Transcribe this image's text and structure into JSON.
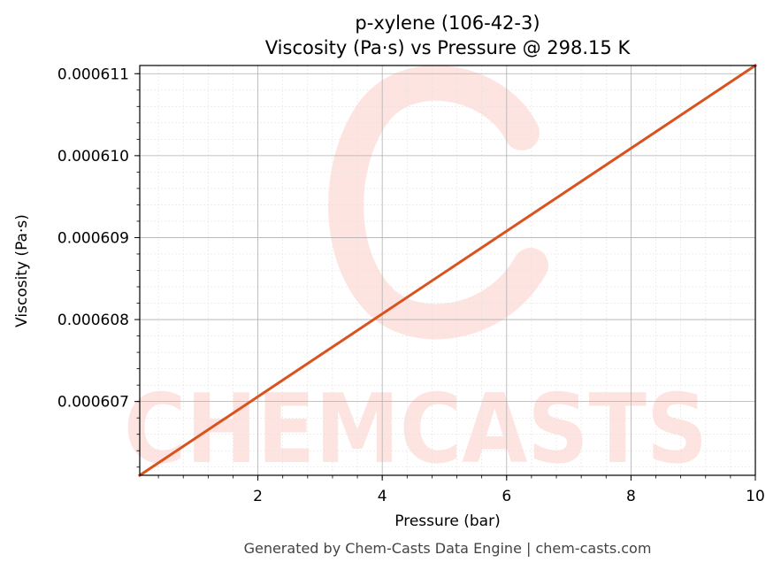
{
  "chart_data": {
    "type": "line",
    "title": "p-xylene (106-42-3)",
    "subtitle": "Viscosity (Pa·s) vs Pressure @ 298.15 K",
    "xlabel": "Pressure (bar)",
    "ylabel": "Viscosity (Pa·s)",
    "xlim": [
      0.1,
      10
    ],
    "ylim": [
      0.0006061,
      0.0006111
    ],
    "x_ticks": [
      2,
      4,
      6,
      8,
      10
    ],
    "x_tick_labels": [
      "2",
      "4",
      "6",
      "8",
      "10"
    ],
    "y_ticks": [
      0.000607,
      0.000608,
      0.000609,
      0.00061,
      0.000611
    ],
    "y_tick_labels": [
      "0.000607",
      "0.000608",
      "0.000609",
      "0.000610",
      "0.000611"
    ],
    "grid": true,
    "series": [
      {
        "color": "#d9531e",
        "x": [
          0.1,
          10
        ],
        "y": [
          0.0006061,
          0.0006111
        ]
      }
    ]
  },
  "watermark": {
    "text": "CHEMCASTS",
    "color": "#fde4e1"
  },
  "footer": "Generated by Chem-Casts Data Engine | chem-casts.com"
}
